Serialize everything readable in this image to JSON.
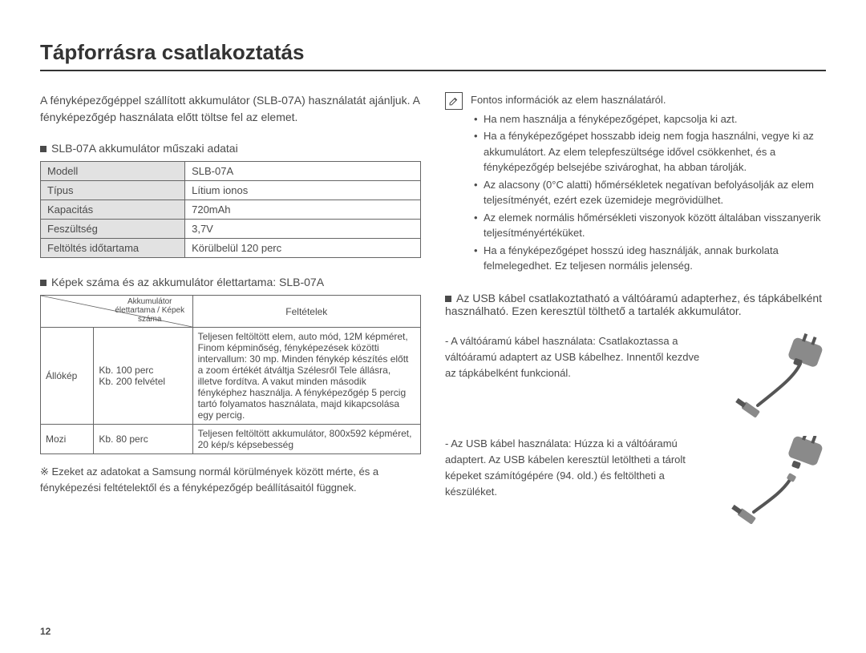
{
  "title": "Tápforrásra csatlakoztatás",
  "intro": "A fényképezőgéppel szállított akkumulátor (SLB-07A) használatát ajánljuk. A fényképezőgép használata előtt töltse fel az elemet.",
  "spec_heading": "SLB-07A akkumulátor műszaki adatai",
  "spec_table": {
    "rows": [
      {
        "label": "Modell",
        "value": "SLB-07A"
      },
      {
        "label": "Típus",
        "value": "Lítium ionos"
      },
      {
        "label": "Kapacitás",
        "value": "720mAh"
      },
      {
        "label": "Feszültség",
        "value": "3,7V"
      },
      {
        "label": "Feltöltés időtartama",
        "value": "Körülbelül 120 perc"
      }
    ]
  },
  "life_heading": "Képek száma és az akkumulátor élettartama: SLB-07A",
  "life_table": {
    "diag_top": "Akkumulátor élettartama / Képek száma",
    "diag_bot": "",
    "cond_header": "Feltételek",
    "rows": [
      {
        "mode": "Állókép",
        "life": "Kb. 100 perc\nKb. 200 felvétel",
        "cond": "Teljesen feltöltött elem, auto mód, 12M képméret, Finom képminőség, fényképezések közötti intervallum: 30 mp. Minden fénykép készítés előtt a zoom értékét átváltja Szélesről Tele állásra, illetve fordítva. A vakut minden második fényképhez használja. A fényképezőgép 5 percig tartó folyamatos használata, majd kikapcsolása egy percig."
      },
      {
        "mode": "Mozi",
        "life": "Kb. 80 perc",
        "cond": "Teljesen feltöltött akkumulátor, 800x592 képméret, 20 kép/s képsebesség"
      }
    ]
  },
  "footnote": "Ezeket az adatokat a Samsung normál körülmények között mérte, és a fényképezési feltételektől és a fényképezőgép beállításaitól függnek.",
  "footnote_prefix": "※ ",
  "note": {
    "title": "Fontos információk az elem használatáról.",
    "bullets": [
      "Ha nem használja a fényképezőgépet, kapcsolja ki azt.",
      "Ha a fényképezőgépet hosszabb ideig nem fogja használni, vegye ki az akkumulátort. Az elem telepfeszültsége idővel csökkenhet, és a fényképezőgép belsejébe szivároghat, ha abban tárolják.",
      "Az alacsony (0°C alatti) hőmérsékletek negatívan befolyásolják az elem teljesítményét, ezért ezek üzemideje megrövidülhet.",
      "Az elemek normális hőmérsékleti viszonyok között általában visszanyerik teljesítményértéküket.",
      "Ha a fényképezőgépet hosszú ideg használják, annak burkolata felmelegedhet. Ez teljesen normális jelenség."
    ]
  },
  "usb_intro": "Az USB kábel csatlakoztatható a váltóáramú adapterhez, és tápkábelként használható. Ezen keresztül tölthető a tartalék akkumulátor.",
  "ac_use": "- A váltóáramú kábel használata: Csatlakoztassa a váltóáramú adaptert az USB kábelhez. Innentől kezdve az tápkábelként funkcionál.",
  "usb_use": "- Az USB kábel használata: Húzza ki a váltóáramú adaptert. Az USB kábelen keresztül letöltheti a tárolt képeket számítógépére (94. old.) és feltöltheti a készüléket.",
  "page_number": "12",
  "colors": {
    "text": "#4a4a4a",
    "heading": "#333333",
    "table_border": "#666666",
    "label_bg": "#e2e2e2",
    "background": "#ffffff",
    "cable_gray": "#8a8a8a",
    "cable_dark": "#555555"
  }
}
